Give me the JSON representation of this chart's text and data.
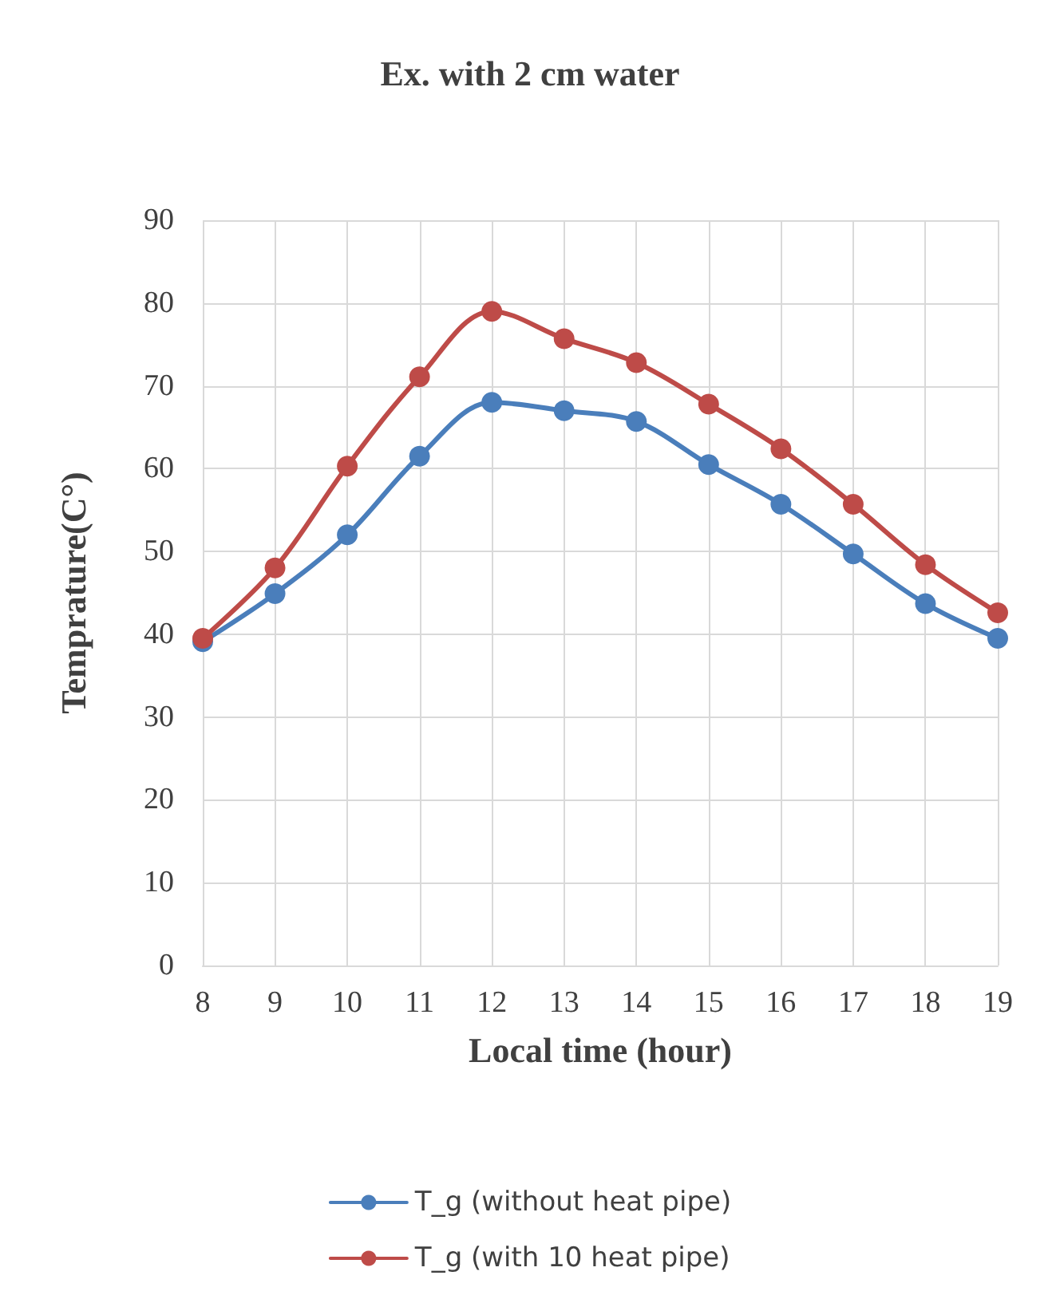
{
  "chart_data": {
    "type": "line",
    "title": "Ex. with 2 cm water",
    "xlabel": "Local time (hour)",
    "ylabel": "Temprature(C°)",
    "categories": [
      "8",
      "9",
      "10",
      "11",
      "12",
      "13",
      "14",
      "15",
      "16",
      "17",
      "18",
      "19"
    ],
    "series": [
      {
        "name": "T_g (without heat pipe)",
        "color": "#4a7ebb",
        "values": [
          39.1,
          44.9,
          52.0,
          61.5,
          68.0,
          67.0,
          65.7,
          60.5,
          55.7,
          49.7,
          43.7,
          39.5
        ]
      },
      {
        "name": "T_g (with 10 heat pipe)",
        "color": "#be4b48",
        "values": [
          39.5,
          48.0,
          60.3,
          71.1,
          79.0,
          75.7,
          72.8,
          67.8,
          62.4,
          55.7,
          48.4,
          42.6
        ]
      }
    ],
    "ylim": [
      0,
      90
    ],
    "yticks": [
      0,
      10,
      20,
      30,
      40,
      50,
      60,
      70,
      80,
      90
    ],
    "grid": true,
    "legend": "bottom",
    "marker": "circle",
    "line_style": "solid"
  }
}
